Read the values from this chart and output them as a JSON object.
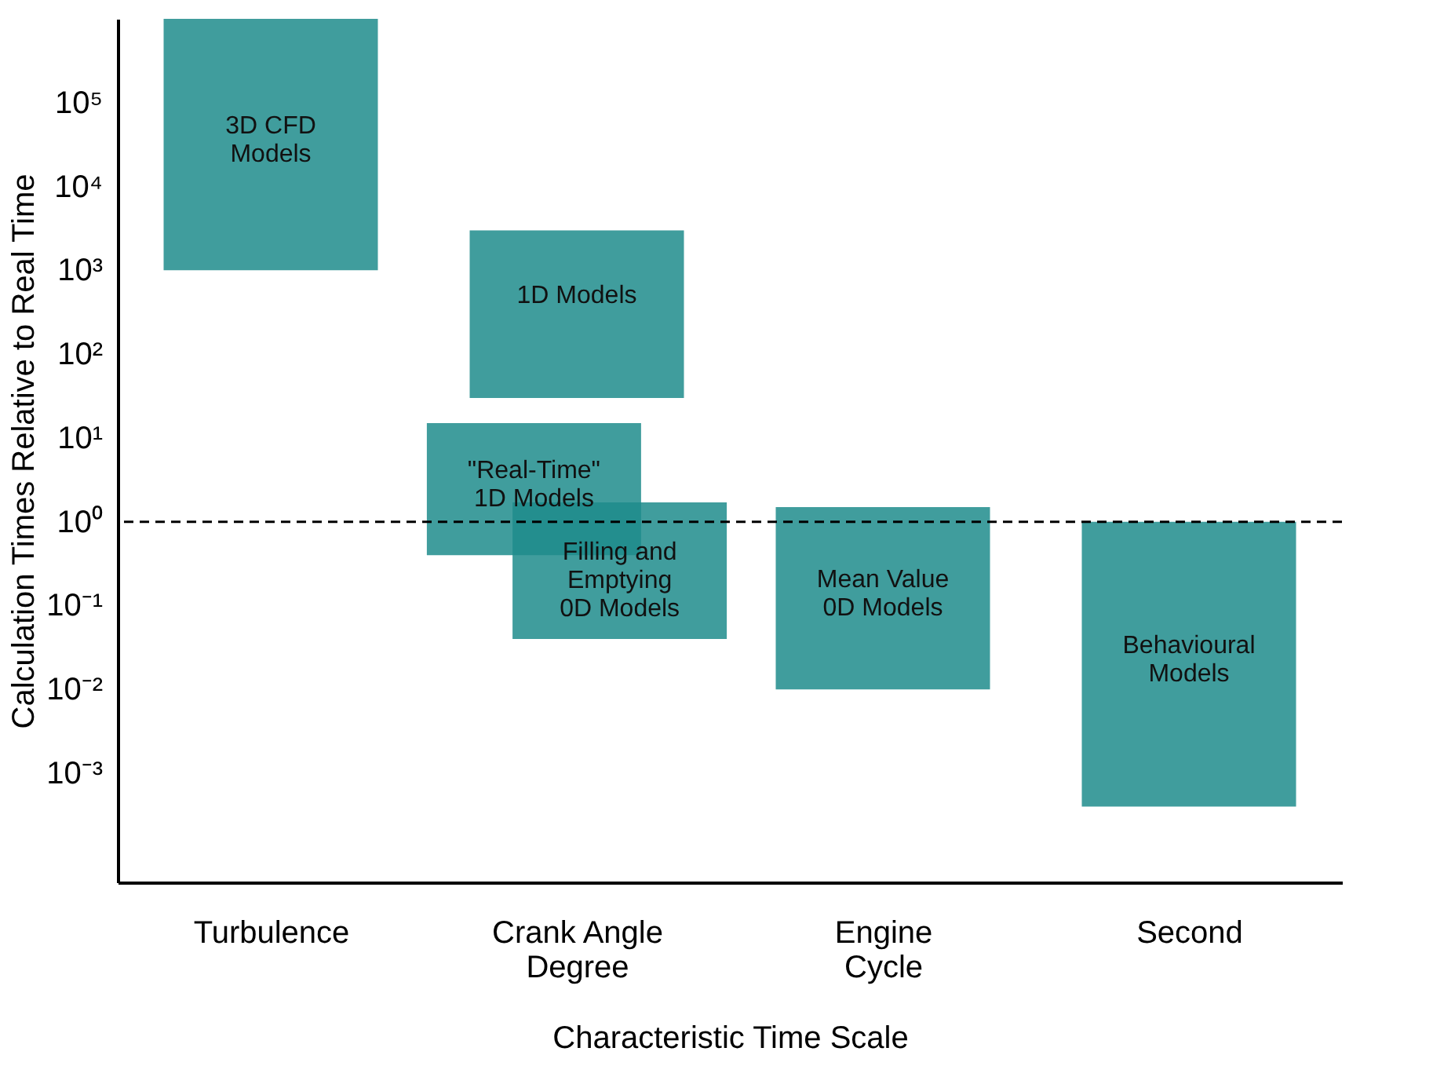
{
  "chart_data": {
    "type": "bar",
    "xlabel": "Characteristic Time Scale",
    "ylabel": "Calculation Times Relative to Real Time",
    "categories": [
      "Turbulence",
      "Crank Angle\nDegree",
      "Engine\nCycle",
      "Second"
    ],
    "log": true,
    "ylim": [
      5e-05,
      1000000
    ],
    "yticks": [
      {
        "value": 0.001,
        "label": "10⁻³"
      },
      {
        "value": 0.01,
        "label": "10⁻²"
      },
      {
        "value": 0.1,
        "label": "10⁻¹"
      },
      {
        "value": 1,
        "label": "10⁰"
      },
      {
        "value": 10,
        "label": "10¹"
      },
      {
        "value": 100,
        "label": "10²"
      },
      {
        "value": 1000,
        "label": "10³"
      },
      {
        "value": 10000,
        "label": "10⁴"
      },
      {
        "value": 100000,
        "label": "10⁵"
      }
    ],
    "series": [
      {
        "name": "3D CFD\nModels",
        "color": "#1e8c8c",
        "base": [
          1000,
          null,
          null,
          null
        ],
        "values": [
          999000,
          null,
          null,
          null
        ]
      },
      {
        "name": "\"Real-Time\"\n1D Models",
        "color": "#1e8c8c",
        "base": [
          null,
          0.4,
          null,
          null
        ],
        "values": [
          null,
          14.6,
          null,
          null
        ]
      },
      {
        "name": "1D Models",
        "color": "#1e8c8c",
        "base": [
          null,
          30,
          null,
          null
        ],
        "values": [
          null,
          2970,
          null,
          null
        ]
      },
      {
        "name": "Filling and\nEmptying\n0D Models",
        "color": "#1e8c8c",
        "base": [
          null,
          0.04,
          null,
          null
        ],
        "values": [
          null,
          1.66,
          null,
          null
        ]
      },
      {
        "name": "Mean Value\n0D Models",
        "color": "#1e8c8c",
        "base": [
          null,
          null,
          0.01,
          null
        ],
        "values": [
          null,
          null,
          1.49,
          null
        ]
      },
      {
        "name": "Behavioural\nModels",
        "color": "#1e8c8c",
        "base": [
          null,
          null,
          null,
          0.0004
        ],
        "values": [
          null,
          null,
          null,
          0.9996
        ]
      }
    ],
    "ref_lines": [
      {
        "axis": "y",
        "value": 1,
        "line_style": "dashed",
        "color": "#000000"
      }
    ],
    "grid": false,
    "legend": false
  }
}
